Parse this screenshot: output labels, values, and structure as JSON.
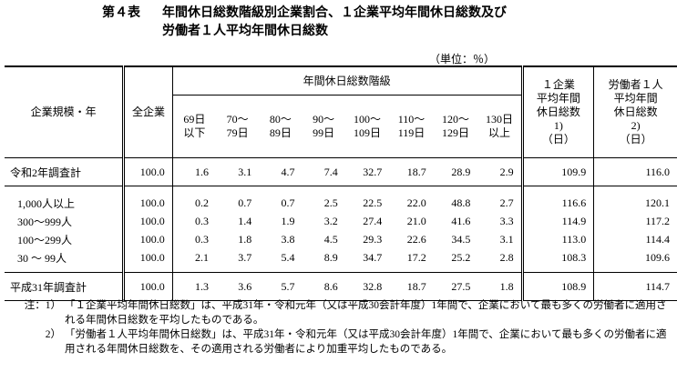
{
  "title": {
    "label": "第４表",
    "line1": "年間休日総数階級別企業割合、１企業平均年間休日総数及び",
    "line2": "労働者１人平均年間休日総数"
  },
  "unit": "（単位：％）",
  "table": {
    "header": {
      "row_label": "企業規模・年",
      "total": "全企業",
      "group": "年間休日総数階級",
      "classes": [
        [
          "69日",
          "以下"
        ],
        [
          "70～",
          "79日"
        ],
        [
          "80～",
          "89日"
        ],
        [
          "90～",
          "99日"
        ],
        [
          "100～",
          "109日"
        ],
        [
          "110～",
          "119日"
        ],
        [
          "120～",
          "129日"
        ],
        [
          "130日",
          "以上"
        ]
      ],
      "avg_company": [
        "１企業",
        "平均年間",
        "休日総数",
        "1)",
        "（日）"
      ],
      "avg_worker": [
        "労働者１人",
        "平均年間",
        "休日総数",
        "2)",
        "（日）"
      ]
    },
    "sections": [
      [
        {
          "label": "令和2年調査計",
          "values": [
            "100.0",
            "1.6",
            "3.1",
            "4.7",
            "7.4",
            "32.7",
            "18.7",
            "28.9",
            "2.9",
            "109.9",
            "116.0"
          ]
        }
      ],
      [
        {
          "label": "1,000人以上",
          "values": [
            "100.0",
            "0.2",
            "0.7",
            "0.7",
            "2.5",
            "22.5",
            "22.0",
            "48.8",
            "2.7",
            "116.6",
            "120.1"
          ]
        },
        {
          "label": "300～999人",
          "values": [
            "100.0",
            "0.3",
            "1.4",
            "1.9",
            "3.2",
            "27.4",
            "21.0",
            "41.6",
            "3.3",
            "114.9",
            "117.2"
          ]
        },
        {
          "label": "100～299人",
          "values": [
            "100.0",
            "0.3",
            "1.8",
            "3.8",
            "4.5",
            "29.3",
            "22.6",
            "34.5",
            "3.1",
            "113.0",
            "114.4"
          ]
        },
        {
          "label": "30 ～ 99人",
          "values": [
            "100.0",
            "2.1",
            "3.7",
            "5.4",
            "8.9",
            "34.7",
            "17.2",
            "25.2",
            "2.8",
            "108.3",
            "109.6"
          ]
        }
      ],
      [
        {
          "label": "平成31年調査計",
          "values": [
            "100.0",
            "1.3",
            "3.6",
            "5.7",
            "8.6",
            "32.8",
            "18.7",
            "27.5",
            "1.8",
            "108.9",
            "114.7"
          ]
        }
      ]
    ]
  },
  "notes": [
    {
      "label": "注：1）",
      "text": "「１企業平均年間休日総数」は、平成31年・令和元年（又は平成30会計年度）1年間で、企業において最も多くの労働者に適用される年間休日総数を平均したものである。"
    },
    {
      "label": "2）",
      "text": "「労働者１人平均年間休日総数」は、平成31年・令和元年（又は平成30会計年度）1年間で、企業において最も多くの労働者に適用される年間休日総数を、その適用される労働者により加重平均したものである。"
    }
  ]
}
